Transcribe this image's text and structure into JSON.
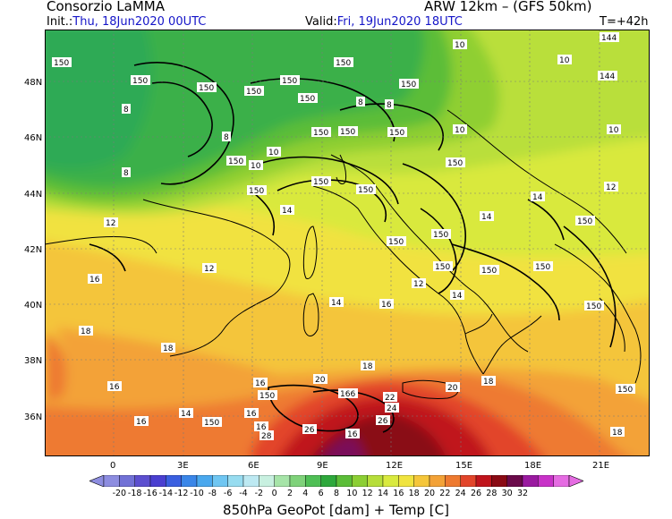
{
  "header": {
    "org": "Consorzio LaMMA",
    "model": "ARW 12km – (GFS 50km)",
    "init_prefix": "Init.:",
    "init_value": "Thu, 18Jun2020 00UTC",
    "valid_prefix": "Valid:",
    "valid_value": "Fri, 19Jun2020 18UTC",
    "lead": "T=+42h"
  },
  "axes": {
    "lat_labels": [
      "48N",
      "46N",
      "44N",
      "42N",
      "40N",
      "38N",
      "36N"
    ],
    "lon_labels": [
      "0",
      "3E",
      "6E",
      "9E",
      "12E",
      "15E",
      "18E",
      "21E"
    ]
  },
  "colorbar": {
    "labels": [
      "-20",
      "-18",
      "-16",
      "-14",
      "-12",
      "-10",
      "-8",
      "-6",
      "-4",
      "-2",
      "0",
      "2",
      "4",
      "6",
      "8",
      "10",
      "12",
      "14",
      "16",
      "18",
      "20",
      "22",
      "24",
      "26",
      "28",
      "30",
      "32"
    ],
    "colors": [
      "#8d8de0",
      "#7171d6",
      "#5c4fcf",
      "#4a3fd0",
      "#3a5fe0",
      "#3a86e8",
      "#4aa8ee",
      "#6fc6f2",
      "#97dcf0",
      "#bde9f2",
      "#c8f0e0",
      "#a6e4a8",
      "#7fd27a",
      "#4fbf55",
      "#2ea83c",
      "#5bbd38",
      "#8ccf34",
      "#b6de3a",
      "#d9ea3f",
      "#f0e43f",
      "#f5c63a",
      "#f3a237",
      "#ee7a30",
      "#e2452a",
      "#c0141c",
      "#8a0a14",
      "#6a0a4a",
      "#9a1aa0",
      "#c832c8",
      "#e56ce2"
    ]
  },
  "map": {
    "title_footer": "850hPa GeoPot [dam] + Temp [C]",
    "colors": {
      "green_dark": "#2faa55",
      "green": "#3bb04a",
      "green_light": "#5cbd37",
      "lime": "#8fcf33",
      "yellow_green": "#b9df3a",
      "yellow": "#d9e93e",
      "yellow_warm": "#f1e23f",
      "amber": "#f4c53a",
      "orange": "#f3a237",
      "orange_red": "#ee7a30",
      "red": "#e2452a",
      "dark_red": "#c0141c",
      "maroon": "#8a0a14",
      "purple": "#7a0a5a"
    },
    "labels": [
      {
        "t": "150"
      },
      {
        "t": "150"
      },
      {
        "t": "150"
      },
      {
        "t": "150"
      },
      {
        "t": "150"
      },
      {
        "t": "150"
      },
      {
        "t": "150"
      },
      {
        "t": "150"
      },
      {
        "t": "150"
      },
      {
        "t": "150"
      },
      {
        "t": "150"
      },
      {
        "t": "150"
      },
      {
        "t": "150"
      },
      {
        "t": "150"
      },
      {
        "t": "150"
      },
      {
        "t": "150"
      },
      {
        "t": "150"
      },
      {
        "t": "150"
      },
      {
        "t": "150"
      },
      {
        "t": "150"
      },
      {
        "t": "150"
      },
      {
        "t": "150"
      },
      {
        "t": "150"
      },
      {
        "t": "150"
      },
      {
        "t": "144"
      },
      {
        "t": "144"
      },
      {
        "t": "10"
      },
      {
        "t": "10"
      },
      {
        "t": "10"
      },
      {
        "t": "10"
      },
      {
        "t": "10"
      },
      {
        "t": "10"
      },
      {
        "t": "8"
      },
      {
        "t": "8"
      },
      {
        "t": "8"
      },
      {
        "t": "8"
      },
      {
        "t": "8"
      },
      {
        "t": "12"
      },
      {
        "t": "12"
      },
      {
        "t": "12"
      },
      {
        "t": "12"
      },
      {
        "t": "14"
      },
      {
        "t": "14"
      },
      {
        "t": "14"
      },
      {
        "t": "14"
      },
      {
        "t": "14"
      },
      {
        "t": "14"
      },
      {
        "t": "16"
      },
      {
        "t": "16"
      },
      {
        "t": "16"
      },
      {
        "t": "16"
      },
      {
        "t": "16"
      },
      {
        "t": "16"
      },
      {
        "t": "16"
      },
      {
        "t": "16"
      },
      {
        "t": "18"
      },
      {
        "t": "18"
      },
      {
        "t": "18"
      },
      {
        "t": "18"
      },
      {
        "t": "18"
      },
      {
        "t": "20"
      },
      {
        "t": "20"
      },
      {
        "t": "22"
      },
      {
        "t": "24"
      },
      {
        "t": "26"
      },
      {
        "t": "26"
      },
      {
        "t": "28"
      },
      {
        "t": "166"
      },
      {
        "t": "150"
      },
      {
        "t": "150"
      }
    ]
  }
}
